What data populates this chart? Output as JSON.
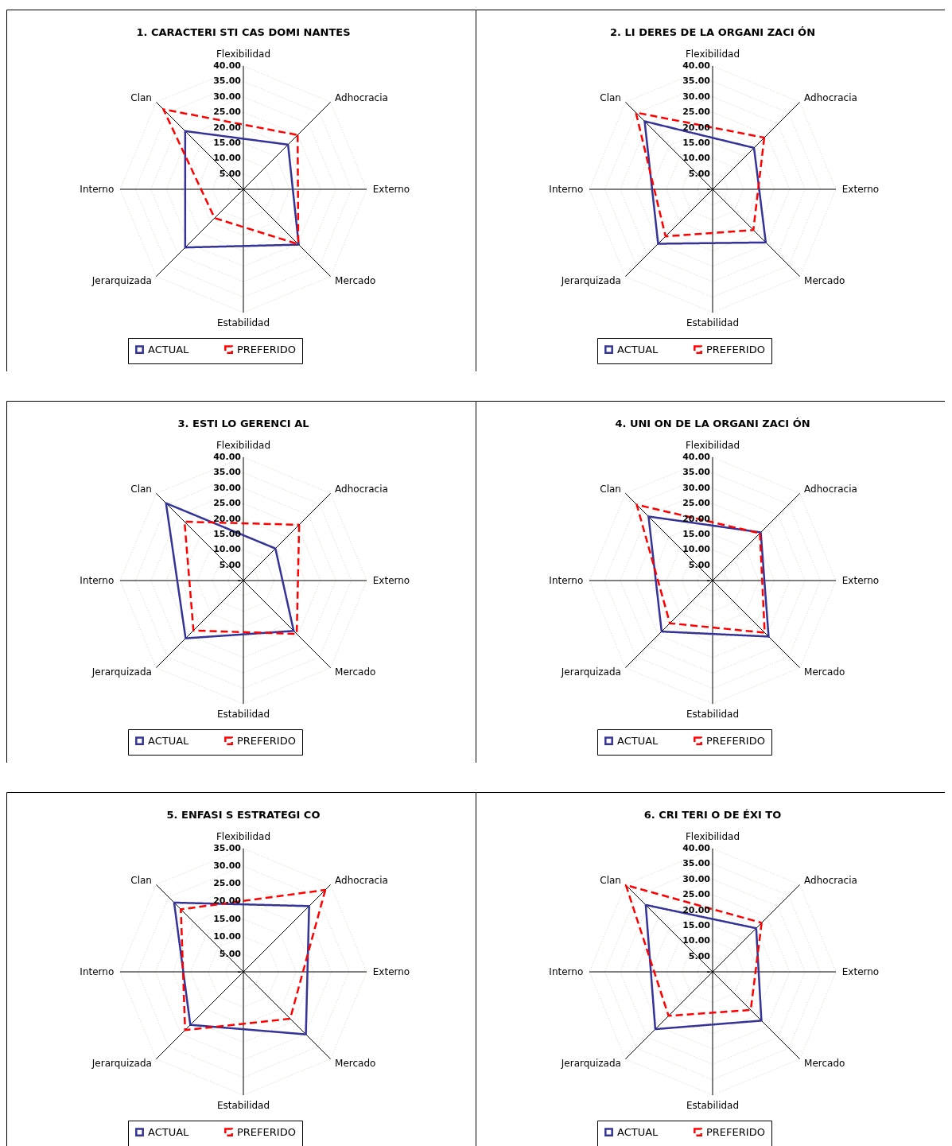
{
  "chart_data": [
    {
      "type": "radar",
      "title": "1. CARACTERI STI CAS DOMI NANTES",
      "categories": [
        "Flexibilidad",
        "Adhocracia",
        "Externo",
        "Mercado",
        "Estabilidad",
        "Jerarquizada",
        "Interno",
        "Clan"
      ],
      "ylim": [
        0,
        40
      ],
      "yticks": [
        {
          "value": 0,
          "label": "-"
        },
        {
          "value": 5,
          "label": "5.00"
        },
        {
          "value": 10,
          "label": "10.00"
        },
        {
          "value": 15,
          "label": "15.00"
        },
        {
          "value": 20,
          "label": "20.00"
        },
        {
          "value": 25,
          "label": "25.00"
        },
        {
          "value": 30,
          "label": "30.00"
        },
        {
          "value": 35,
          "label": "35.00"
        },
        {
          "value": 40,
          "label": "40.00"
        }
      ],
      "grid": true,
      "legend": "bottom",
      "series": [
        {
          "name": "ACTUAL",
          "color": "#333399",
          "line_style": "solid",
          "values": [
            null,
            20.5,
            null,
            25.4,
            null,
            26.7,
            null,
            26.7
          ]
        },
        {
          "name": "PREFERIDO",
          "color": "#ff0000",
          "line_style": "dashed",
          "values": [
            null,
            24.9,
            null,
            25.2,
            null,
            13.2,
            null,
            36.7
          ]
        }
      ]
    },
    {
      "type": "radar",
      "title": "2. LI DERES DE LA ORGANI ZACI ÓN",
      "categories": [
        "Flexibilidad",
        "Adhocracia",
        "Externo",
        "Mercado",
        "Estabilidad",
        "Jerarquizada",
        "Interno",
        "Clan"
      ],
      "ylim": [
        0,
        40
      ],
      "yticks": [
        {
          "value": 0,
          "label": "-"
        },
        {
          "value": 5,
          "label": "5.00"
        },
        {
          "value": 10,
          "label": "10.00"
        },
        {
          "value": 15,
          "label": "15.00"
        },
        {
          "value": 20,
          "label": "20.00"
        },
        {
          "value": 25,
          "label": "25.00"
        },
        {
          "value": 30,
          "label": "30.00"
        },
        {
          "value": 35,
          "label": "35.00"
        },
        {
          "value": 40,
          "label": "40.00"
        }
      ],
      "grid": true,
      "legend": "bottom",
      "series": [
        {
          "name": "ACTUAL",
          "color": "#333399",
          "line_style": "solid",
          "values": [
            null,
            19.0,
            null,
            24.4,
            null,
            25.0,
            null,
            31.2
          ]
        },
        {
          "name": "PREFERIDO",
          "color": "#ff0000",
          "line_style": "dashed",
          "values": [
            null,
            23.7,
            null,
            18.7,
            null,
            21.6,
            null,
            35.2
          ]
        }
      ]
    },
    {
      "type": "radar",
      "title": "3. ESTI LO GERENCI AL",
      "categories": [
        "Flexibilidad",
        "Adhocracia",
        "Externo",
        "Mercado",
        "Estabilidad",
        "Jerarquizada",
        "Interno",
        "Clan"
      ],
      "ylim": [
        0,
        40
      ],
      "yticks": [
        {
          "value": 0,
          "label": "-"
        },
        {
          "value": 5,
          "label": "5.00"
        },
        {
          "value": 10,
          "label": "10.00"
        },
        {
          "value": 15,
          "label": "15.00"
        },
        {
          "value": 20,
          "label": "20.00"
        },
        {
          "value": 25,
          "label": "25.00"
        },
        {
          "value": 30,
          "label": "30.00"
        },
        {
          "value": 35,
          "label": "35.00"
        },
        {
          "value": 40,
          "label": "40.00"
        }
      ],
      "grid": true,
      "legend": "bottom",
      "series": [
        {
          "name": "ACTUAL",
          "color": "#333399",
          "line_style": "solid",
          "values": [
            null,
            14.7,
            null,
            23.1,
            null,
            26.5,
            null,
            35.5
          ]
        },
        {
          "name": "PREFERIDO",
          "color": "#ff0000",
          "line_style": "dashed",
          "values": [
            null,
            25.6,
            null,
            24.5,
            null,
            22.9,
            null,
            27.0
          ]
        }
      ]
    },
    {
      "type": "radar",
      "title": "4. UNI ON DE LA ORGANI ZACI ÓN",
      "categories": [
        "Flexibilidad",
        "Adhocracia",
        "Externo",
        "Mercado",
        "Estabilidad",
        "Jerarquizada",
        "Interno",
        "Clan"
      ],
      "ylim": [
        0,
        40
      ],
      "yticks": [
        {
          "value": 0,
          "label": "-"
        },
        {
          "value": 5,
          "label": "5.00"
        },
        {
          "value": 10,
          "label": "10.00"
        },
        {
          "value": 15,
          "label": "15.00"
        },
        {
          "value": 20,
          "label": "20.00"
        },
        {
          "value": 25,
          "label": "25.00"
        },
        {
          "value": 30,
          "label": "30.00"
        },
        {
          "value": 35,
          "label": "35.00"
        },
        {
          "value": 40,
          "label": "40.00"
        }
      ],
      "grid": true,
      "legend": "bottom",
      "series": [
        {
          "name": "ACTUAL",
          "color": "#333399",
          "line_style": "solid",
          "values": [
            null,
            22.1,
            null,
            25.7,
            null,
            23.4,
            null,
            29.4
          ]
        },
        {
          "name": "PREFERIDO",
          "color": "#ff0000",
          "line_style": "dashed",
          "values": [
            null,
            21.7,
            null,
            23.9,
            null,
            19.6,
            null,
            34.8
          ]
        }
      ]
    },
    {
      "type": "radar",
      "title": "5. ENFASI S ESTRATEGI CO",
      "categories": [
        "Flexibilidad",
        "Adhocracia",
        "Externo",
        "Mercado",
        "Estabilidad",
        "Jerarquizada",
        "Interno",
        "Clan"
      ],
      "ylim": [
        0,
        35
      ],
      "yticks": [
        {
          "value": 0,
          "label": "-"
        },
        {
          "value": 5,
          "label": "5.00"
        },
        {
          "value": 10,
          "label": "10.00"
        },
        {
          "value": 15,
          "label": "15.00"
        },
        {
          "value": 20,
          "label": "20.00"
        },
        {
          "value": 25,
          "label": "25.00"
        },
        {
          "value": 30,
          "label": "30.00"
        },
        {
          "value": 35,
          "label": "35.00"
        }
      ],
      "grid": true,
      "legend": "bottom",
      "series": [
        {
          "name": "ACTUAL",
          "color": "#333399",
          "line_style": "solid",
          "values": [
            null,
            26.4,
            null,
            25.1,
            null,
            21.3,
            null,
            27.8
          ]
        },
        {
          "name": "PREFERIDO",
          "color": "#ff0000",
          "line_style": "dashed",
          "values": [
            null,
            32.9,
            null,
            18.8,
            null,
            23.4,
            null,
            25.1
          ]
        }
      ]
    },
    {
      "type": "radar",
      "title": "6. CRI TERI O DE ÉXI TO",
      "categories": [
        "Flexibilidad",
        "Adhocracia",
        "Externo",
        "Mercado",
        "Estabilidad",
        "Jerarquizada",
        "Interno",
        "Clan"
      ],
      "ylim": [
        0,
        40
      ],
      "yticks": [
        {
          "value": 0,
          "label": "-"
        },
        {
          "value": 5,
          "label": "5.00"
        },
        {
          "value": 10,
          "label": "10.00"
        },
        {
          "value": 15,
          "label": "15.00"
        },
        {
          "value": 20,
          "label": "20.00"
        },
        {
          "value": 25,
          "label": "25.00"
        },
        {
          "value": 30,
          "label": "30.00"
        },
        {
          "value": 35,
          "label": "35.00"
        },
        {
          "value": 40,
          "label": "40.00"
        }
      ],
      "grid": true,
      "legend": "bottom",
      "series": [
        {
          "name": "ACTUAL",
          "color": "#333399",
          "line_style": "solid",
          "values": [
            null,
            20.0,
            null,
            22.4,
            null,
            26.3,
            null,
            30.7
          ]
        },
        {
          "name": "PREFERIDO",
          "color": "#ff0000",
          "line_style": "dashed",
          "values": [
            null,
            22.5,
            null,
            17.5,
            null,
            20.2,
            null,
            39.8
          ]
        }
      ]
    }
  ]
}
